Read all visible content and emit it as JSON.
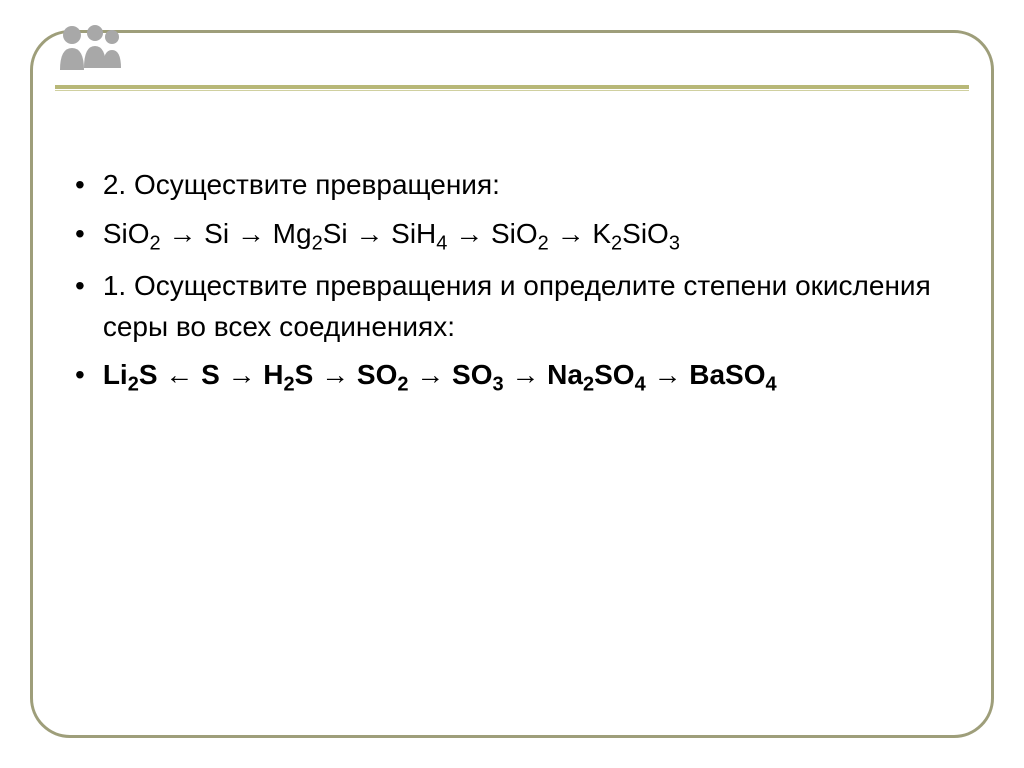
{
  "frame": {
    "border_color": "#9e9e7a",
    "border_radius": 40,
    "background": "#ffffff"
  },
  "divider": {
    "main_color": "#b8b878",
    "sub_color": "#d0d0a0"
  },
  "decoration": {
    "color": "#a8a8a8"
  },
  "typography": {
    "font_family": "Arial",
    "font_size": 28,
    "sub_font_size": 20,
    "text_color": "#000000"
  },
  "content": {
    "items": [
      {
        "bullet": "•",
        "text": "  2. Осуществите превращения:",
        "bold": false,
        "formula": false
      },
      {
        "bullet": "•",
        "text": "SiO_2  →  Si  →  Mg_2Si  →  SiH_4 → SiO_2 → K_2SiO_3",
        "bold": false,
        "formula": true
      },
      {
        "bullet": "•",
        "text": "1. Осуществите превращения и определите степени окисления серы во всех соединениях:",
        "bold": false,
        "formula": false
      },
      {
        "bullet": "•",
        "text": "Li_2S ←  S → H_2S → SO_2 → SO_3 → Na_2SO_4 → BaSO_4",
        "bold": true,
        "formula": true
      }
    ]
  }
}
